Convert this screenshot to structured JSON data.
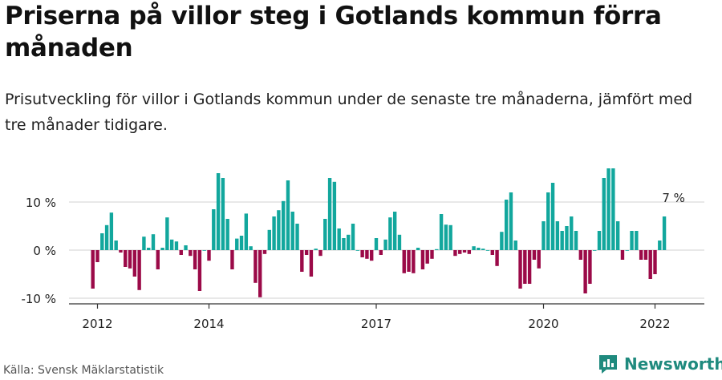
{
  "title": "Priserna på villor steg i Gotlands kommun förra månaden",
  "subtitle": "Prisutveckling för villor i Gotlands kommun under de senaste tre månaderna, jämfört med tre månader tidigare.",
  "source": "Källa: Svensk Mäklarstatistik",
  "logo_text": "Newsworthy",
  "colors": {
    "positive": "#12a79d",
    "negative": "#9b0a48",
    "grid": "#d9d9d9",
    "axis": "#333333",
    "brand": "#1f8a7e"
  },
  "chart_data": {
    "type": "bar",
    "ylim": [
      -10,
      17
    ],
    "y_ticks": [
      -10,
      0,
      10
    ],
    "y_tick_labels": [
      "-10 %",
      "0 %",
      "10 %"
    ],
    "x_ticks": [
      2012,
      2014,
      2017,
      2020,
      2022
    ],
    "x_tick_labels": [
      "2012",
      "2014",
      "2017",
      "2020",
      "2022"
    ],
    "grid": true,
    "annotation": {
      "text": "7 %",
      "date": "2022-05"
    },
    "start_month": "2011-12",
    "values": [
      -8,
      -2.5,
      3.5,
      5.2,
      7.8,
      2,
      -0.5,
      -3.5,
      -3.8,
      -5.5,
      -8.3,
      2.8,
      0.5,
      3.3,
      -4,
      0.5,
      6.8,
      2.2,
      1.8,
      -1,
      1,
      -1.2,
      -4,
      -8.5,
      0,
      -2.2,
      8.5,
      16,
      15,
      6.5,
      -4,
      2.4,
      3,
      7.6,
      0.8,
      -6.8,
      -9.8,
      -0.8,
      4.2,
      7,
      8.3,
      10.2,
      14.5,
      8,
      5.5,
      -4.5,
      -1,
      -5.5,
      0.3,
      -1.2,
      6.5,
      15,
      14.2,
      4.5,
      2.5,
      3.2,
      5.5,
      0,
      -1.5,
      -1.8,
      -2.2,
      2.5,
      -1,
      2.2,
      6.8,
      8,
      3.2,
      -4.8,
      -4.5,
      -4.8,
      0.5,
      -4,
      -2.8,
      -1.8,
      0.2,
      7.5,
      5.3,
      5.2,
      -1.2,
      -0.8,
      -0.5,
      -0.8,
      0.8,
      0.5,
      0.3,
      0,
      -1,
      -3.3,
      3.8,
      10.5,
      12,
      2,
      -8,
      -7,
      -7,
      -2,
      -3.8,
      6,
      12,
      14,
      6,
      4,
      5,
      7,
      4,
      -2,
      -9,
      -7,
      0,
      4,
      15,
      17,
      17,
      6,
      -2,
      0,
      4,
      4,
      -2,
      -2,
      -6,
      -5,
      2,
      7
    ]
  }
}
